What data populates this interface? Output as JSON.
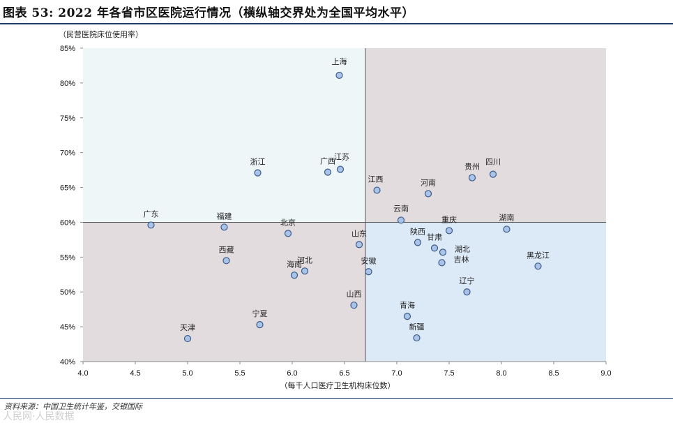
{
  "title": "图表 53: 2022 年各省市区医院运行情况（横纵轴交界处为全国平均水平）",
  "source": "资料来源：中国卫生统计年鉴，交银国际",
  "watermark": "人民网·人民数据",
  "colors": {
    "quadrant_top_left": "#eef6f8",
    "quadrant_top_right": "#e3dcdf",
    "quadrant_bottom_left": "#e3dcdf",
    "quadrant_bottom_right": "#dce9f7",
    "point_fill": "#a9c4e8",
    "point_stroke": "#3a5a88",
    "crosshair": "#555555"
  },
  "chart_data": {
    "type": "scatter",
    "ylabel": "（民营医院床位使用率）",
    "xlabel": "（每千人口医疗卫生机构床位数）",
    "xlim": [
      4.0,
      9.0
    ],
    "ylim": [
      0.4,
      0.85
    ],
    "xticks": [
      4.0,
      4.5,
      5.0,
      5.5,
      6.0,
      6.5,
      7.0,
      7.5,
      8.0,
      8.5,
      9.0
    ],
    "xtick_labels": [
      "4.0",
      "4.5",
      "5.0",
      "5.5",
      "6.0",
      "6.5",
      "7.0",
      "7.5",
      "8.0",
      "8.5",
      "9.0"
    ],
    "yticks": [
      0.4,
      0.45,
      0.5,
      0.55,
      0.6,
      0.65,
      0.7,
      0.75,
      0.8,
      0.85
    ],
    "ytick_labels": [
      "40%",
      "45%",
      "50%",
      "55%",
      "60%",
      "65%",
      "70%",
      "75%",
      "80%",
      "85%"
    ],
    "crosshair": {
      "x": 6.7,
      "y": 0.6
    },
    "points": [
      {
        "name": "上海",
        "x": 6.45,
        "y": 0.811
      },
      {
        "name": "浙江",
        "x": 5.67,
        "y": 0.671
      },
      {
        "name": "广西",
        "x": 6.34,
        "y": 0.672
      },
      {
        "name": "江苏",
        "x": 6.46,
        "y": 0.676
      },
      {
        "name": "江西",
        "x": 6.81,
        "y": 0.646
      },
      {
        "name": "河南",
        "x": 7.3,
        "y": 0.641
      },
      {
        "name": "贵州",
        "x": 7.72,
        "y": 0.664
      },
      {
        "name": "四川",
        "x": 7.92,
        "y": 0.669
      },
      {
        "name": "广东",
        "x": 4.65,
        "y": 0.596
      },
      {
        "name": "福建",
        "x": 5.35,
        "y": 0.593
      },
      {
        "name": "北京",
        "x": 5.96,
        "y": 0.584
      },
      {
        "name": "云南",
        "x": 7.04,
        "y": 0.603
      },
      {
        "name": "重庆",
        "x": 7.5,
        "y": 0.588
      },
      {
        "name": "湖南",
        "x": 8.05,
        "y": 0.59
      },
      {
        "name": "山东",
        "x": 6.64,
        "y": 0.568
      },
      {
        "name": "陕西",
        "x": 7.2,
        "y": 0.571
      },
      {
        "name": "甘肃",
        "x": 7.36,
        "y": 0.563
      },
      {
        "name": "湖北",
        "x": 7.44,
        "y": 0.557
      },
      {
        "name": "吉林",
        "x": 7.43,
        "y": 0.542
      },
      {
        "name": "西藏",
        "x": 5.37,
        "y": 0.545
      },
      {
        "name": "河北",
        "x": 6.12,
        "y": 0.53
      },
      {
        "name": "海南",
        "x": 6.02,
        "y": 0.524
      },
      {
        "name": "安徽",
        "x": 6.73,
        "y": 0.529
      },
      {
        "name": "黑龙江",
        "x": 8.35,
        "y": 0.537
      },
      {
        "name": "辽宁",
        "x": 7.67,
        "y": 0.5
      },
      {
        "name": "山西",
        "x": 6.59,
        "y": 0.481
      },
      {
        "name": "青海",
        "x": 7.1,
        "y": 0.465
      },
      {
        "name": "宁夏",
        "x": 5.69,
        "y": 0.453
      },
      {
        "name": "天津",
        "x": 5.0,
        "y": 0.433
      },
      {
        "name": "新疆",
        "x": 7.19,
        "y": 0.434
      }
    ]
  }
}
